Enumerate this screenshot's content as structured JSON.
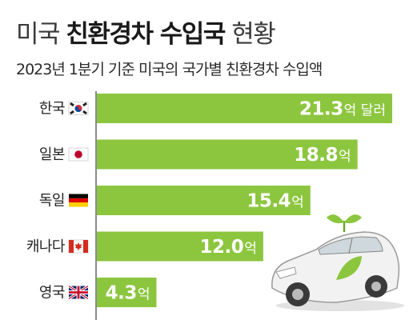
{
  "title": {
    "prefix": "미국",
    "highlight": "친환경차 수입국",
    "suffix": "현황"
  },
  "subtitle": "2023년 1분기 기준 미국의 국가별 친환경차 수입액",
  "colors": {
    "bar": "#8cc63f",
    "axis": "#666666",
    "text": "#222222"
  },
  "chart_data": {
    "type": "bar",
    "orientation": "horizontal",
    "categories": [
      "한국",
      "일본",
      "독일",
      "캐나다",
      "영국"
    ],
    "flags": [
      "korea-flag-icon",
      "japan-flag-icon",
      "germany-flag-icon",
      "canada-flag-icon",
      "uk-flag-icon"
    ],
    "values": [
      21.3,
      18.8,
      15.4,
      12.0,
      4.3
    ],
    "value_labels": [
      "21.3",
      "18.8",
      "15.4",
      "12.0",
      "4.3"
    ],
    "units": [
      "억 달러",
      "억",
      "억",
      "억",
      "억"
    ],
    "title": "미국 친환경차 수입국 현황",
    "xlabel": "",
    "ylabel": "",
    "xlim": [
      0,
      21.3
    ],
    "grid": false,
    "legend": "none"
  },
  "illustration": "eco-car-icon"
}
